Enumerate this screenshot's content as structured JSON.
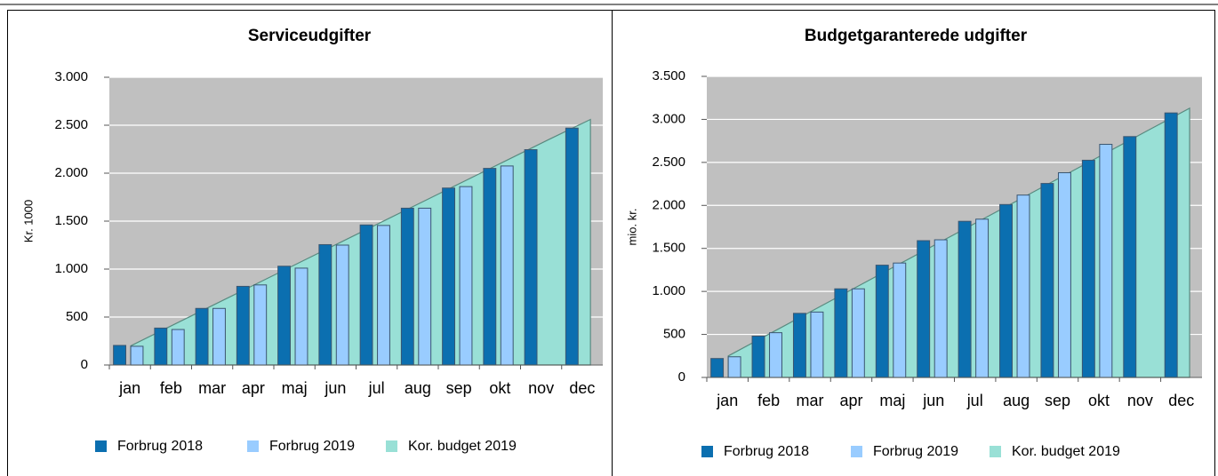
{
  "chart_data": [
    {
      "type": "bar",
      "title": "Serviceudgifter",
      "y_label": "Kr. 1000",
      "categories": [
        "jan",
        "feb",
        "mar",
        "apr",
        "maj",
        "jun",
        "jul",
        "aug",
        "sep",
        "okt",
        "nov",
        "dec"
      ],
      "series": [
        {
          "name": "Forbrug 2018",
          "color": "#0b6fb0",
          "type": "bar",
          "values": [
            204,
            385,
            590,
            820,
            1030,
            1255,
            1460,
            1635,
            1845,
            2050,
            2245,
            2470
          ]
        },
        {
          "name": "Forbrug 2019",
          "color": "#99ccff",
          "type": "bar",
          "values": [
            195,
            370,
            590,
            835,
            1010,
            1250,
            1455,
            1635,
            1860,
            2075,
            null,
            null
          ]
        },
        {
          "name": "Kor. budget 2019",
          "color": "#99e0d6",
          "type": "area",
          "values": [
            200,
            415,
            630,
            845,
            1060,
            1275,
            1490,
            1705,
            1920,
            2135,
            2350,
            2560
          ]
        }
      ],
      "ylim": [
        0,
        3000
      ],
      "yticks": [
        0,
        500,
        {
          "value": 1000,
          "label": "1.000"
        },
        {
          "value": 1500,
          "label": "1.500"
        },
        {
          "value": 2000,
          "label": "2.000"
        },
        {
          "value": 2500,
          "label": "2.500"
        },
        {
          "value": 3000,
          "label": "3.000"
        }
      ],
      "grid": true
    },
    {
      "type": "bar",
      "title": "Budgetgaranterede udgifter",
      "y_label": "mio. kr.",
      "categories": [
        "jan",
        "feb",
        "mar",
        "apr",
        "maj",
        "jun",
        "jul",
        "aug",
        "sep",
        "okt",
        "nov",
        "dec"
      ],
      "series": [
        {
          "name": "Forbrug 2018",
          "color": "#0b6fb0",
          "type": "bar",
          "values": [
            220,
            480,
            745,
            1030,
            1305,
            1590,
            1815,
            2010,
            2255,
            2525,
            2800,
            3075
          ]
        },
        {
          "name": "Forbrug 2019",
          "color": "#99ccff",
          "type": "bar",
          "values": [
            240,
            520,
            760,
            1030,
            1330,
            1600,
            1840,
            2120,
            2380,
            2710,
            null,
            null
          ]
        },
        {
          "name": "Kor. budget 2019",
          "color": "#99e0d6",
          "type": "area",
          "values": [
            250,
            512,
            774,
            1036,
            1298,
            1560,
            1822,
            2084,
            2346,
            2608,
            2870,
            3130
          ]
        }
      ],
      "ylim": [
        0,
        3500
      ],
      "yticks": [
        0,
        500,
        {
          "value": 1000,
          "label": "1.000"
        },
        {
          "value": 1500,
          "label": "1.500"
        },
        {
          "value": 2000,
          "label": "2.000"
        },
        {
          "value": 2500,
          "label": "2.500"
        },
        {
          "value": 3000,
          "label": "3.000"
        },
        {
          "value": 3500,
          "label": "3.500"
        }
      ],
      "grid": true
    }
  ]
}
